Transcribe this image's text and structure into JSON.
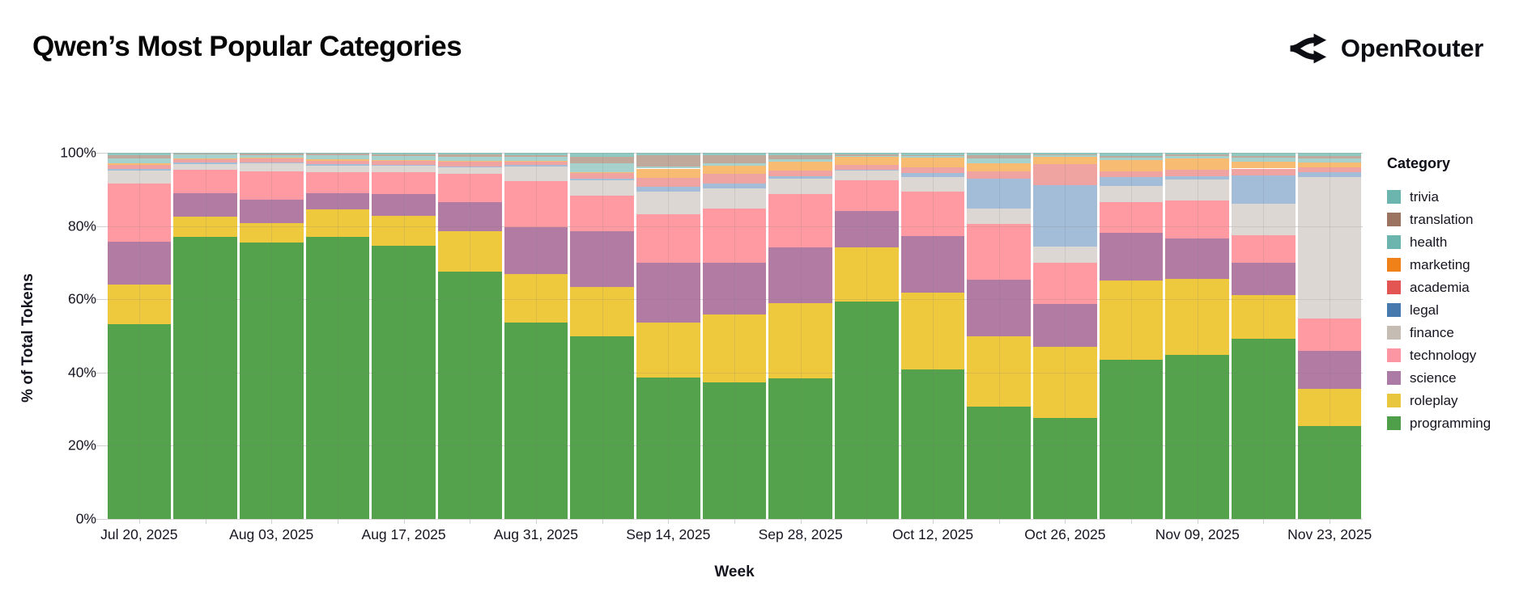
{
  "header": {
    "title": "Qwen’s Most Popular Categories",
    "brand": {
      "name": "OpenRouter",
      "icon": "route-split-arrows"
    }
  },
  "chart_data": {
    "type": "bar",
    "variant": "stacked-normalized-100pct",
    "title": "Qwen’s Most Popular Categories",
    "xlabel": "Week",
    "ylabel": "% of Total Tokens",
    "ylim": [
      0,
      100
    ],
    "grid": true,
    "y_tick_labels": [
      "0%",
      "20%",
      "40%",
      "60%",
      "80%",
      "100%"
    ],
    "y_tick_values": [
      0,
      20,
      40,
      60,
      80,
      100
    ],
    "x_tick_labels": [
      "Jul 20, 2025",
      "Aug 03, 2025",
      "Aug 17, 2025",
      "Aug 31, 2025",
      "Sep 14, 2025",
      "Sep 28, 2025",
      "Oct 12, 2025",
      "Oct 26, 2025",
      "Nov 09, 2025",
      "Nov 23, 2025"
    ],
    "categories": [
      "Jul 20, 2025",
      "Jul 27, 2025",
      "Aug 03, 2025",
      "Aug 10, 2025",
      "Aug 17, 2025",
      "Aug 24, 2025",
      "Aug 31, 2025",
      "Sep 07, 2025",
      "Sep 14, 2025",
      "Sep 21, 2025",
      "Sep 28, 2025",
      "Oct 05, 2025",
      "Oct 12, 2025",
      "Oct 19, 2025",
      "Oct 26, 2025",
      "Nov 02, 2025",
      "Nov 09, 2025",
      "Nov 16, 2025",
      "Nov 23, 2025"
    ],
    "legend": {
      "title": "Category",
      "position": "right"
    },
    "stack_order": "series listed top-of-stack first; bars stack bottom-up in reverse order",
    "series": [
      {
        "name": "trivia",
        "legend_color": "#6cb5ae",
        "bar_color": "#90c8c2",
        "values": [
          0.7,
          0.2,
          0.3,
          0.3,
          0.4,
          0.5,
          0.6,
          1.2,
          0.7,
          0.7,
          0.6,
          0.5,
          0.6,
          0.7,
          0.4,
          0.8,
          0.4,
          0.8,
          0.8
        ]
      },
      {
        "name": "translation",
        "legend_color": "#9b7360",
        "bar_color": "#c0a99b",
        "values": [
          0.8,
          0.2,
          0.3,
          0.4,
          0.4,
          0.5,
          0.5,
          1.6,
          3.1,
          2.2,
          1.2,
          0.3,
          0.3,
          0.8,
          0.2,
          0.5,
          0.5,
          0.6,
          0.7
        ]
      },
      {
        "name": "health",
        "legend_color": "#6cb5ae",
        "bar_color": "#a6d1cc",
        "values": [
          1.3,
          1.1,
          0.7,
          1.0,
          1.2,
          1.2,
          1.2,
          2.4,
          0.5,
          0.7,
          0.7,
          0.4,
          0.5,
          1.3,
          0.4,
          0.7,
          0.6,
          1.1,
          1.1
        ]
      },
      {
        "name": "marketing",
        "legend_color": "#f08118",
        "bar_color": "#f8bb72",
        "values": [
          0.4,
          0.3,
          0.3,
          0.4,
          0.2,
          0.3,
          0.2,
          0.2,
          2.6,
          2.2,
          2.4,
          2.0,
          2.6,
          2.2,
          2.0,
          3.0,
          3.2,
          1.8,
          1.4
        ]
      },
      {
        "name": "academia",
        "legend_color": "#e25553",
        "bar_color": "#efa4a1",
        "values": [
          1.3,
          0.8,
          1.0,
          1.0,
          1.1,
          1.2,
          0.9,
          1.6,
          2.4,
          2.6,
          1.5,
          1.4,
          1.5,
          2.1,
          5.9,
          1.6,
          1.8,
          1.9,
          1.2
        ]
      },
      {
        "name": "legal",
        "legend_color": "#4679ae",
        "bar_color": "#a3bcd8",
        "values": [
          0.4,
          0.4,
          0.3,
          0.4,
          0.3,
          0.3,
          0.4,
          0.4,
          1.3,
          1.2,
          0.7,
          0.3,
          1.2,
          8.1,
          16.6,
          2.5,
          0.8,
          7.7,
          1.5
        ]
      },
      {
        "name": "finance",
        "legend_color": "#c5bcb4",
        "bar_color": "#ddd7d3",
        "values": [
          3.5,
          1.6,
          2.1,
          1.8,
          1.8,
          1.8,
          3.9,
          4.3,
          6.2,
          5.6,
          4.2,
          2.5,
          3.9,
          4.2,
          4.5,
          4.4,
          5.7,
          8.7,
          38.5
        ]
      },
      {
        "name": "technology",
        "legend_color": "#fc96a2",
        "bar_color": "#ff9aa3",
        "values": [
          15.8,
          6.5,
          7.9,
          5.7,
          5.9,
          7.7,
          12.6,
          9.6,
          13.2,
          14.8,
          14.5,
          8.6,
          12.1,
          15.3,
          11.3,
          8.4,
          10.3,
          7.4,
          8.8
        ]
      },
      {
        "name": "science",
        "legend_color": "#ab7ba5",
        "bar_color": "#b27ba3",
        "values": [
          11.8,
          6.4,
          6.2,
          4.5,
          5.9,
          7.8,
          12.9,
          15.4,
          16.3,
          14.1,
          15.2,
          9.8,
          15.5,
          15.3,
          11.6,
          13.0,
          11.2,
          8.9,
          10.5
        ]
      },
      {
        "name": "roleplay",
        "legend_color": "#e8c63e",
        "bar_color": "#eec93e",
        "values": [
          10.8,
          5.5,
          5.4,
          7.4,
          8.1,
          11.2,
          13.2,
          13.3,
          15.1,
          18.5,
          20.6,
          14.8,
          21.0,
          19.3,
          19.5,
          21.7,
          20.6,
          11.9,
          10.1
        ]
      },
      {
        "name": "programming",
        "legend_color": "#4f9e4a",
        "bar_color": "#55a24c",
        "values": [
          53.2,
          77.0,
          75.5,
          77.1,
          74.7,
          67.5,
          53.6,
          50.0,
          38.6,
          37.4,
          38.4,
          59.4,
          40.8,
          30.7,
          27.6,
          43.4,
          44.9,
          49.2,
          25.4
        ]
      }
    ]
  }
}
